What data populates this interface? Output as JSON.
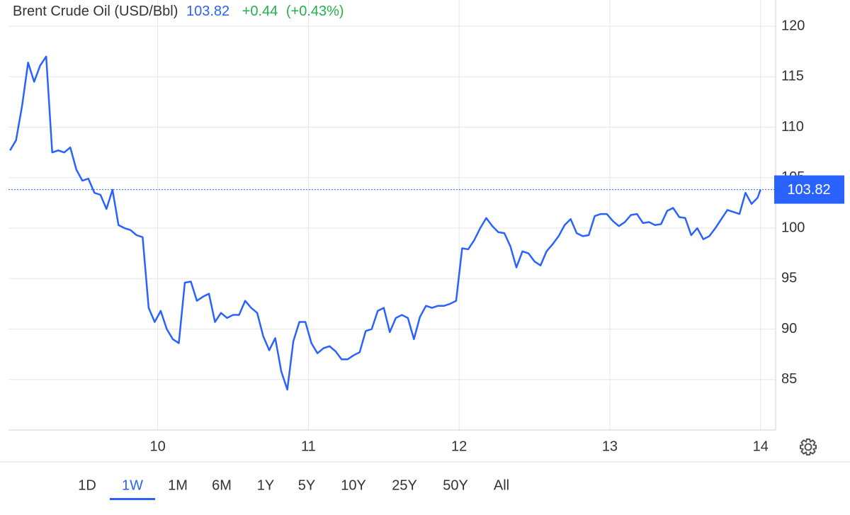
{
  "chart_data": {
    "type": "line",
    "title": "Brent Crude Oil (USD/Bbl)",
    "price": 103.82,
    "change": "+0.44",
    "change_pct": "(+0.43%)",
    "color": "#2962ff",
    "x": [
      9.02,
      9.06,
      9.1,
      9.14,
      9.18,
      9.22,
      9.26,
      9.3,
      9.34,
      9.38,
      9.42,
      9.46,
      9.5,
      9.54,
      9.58,
      9.62,
      9.66,
      9.7,
      9.74,
      9.78,
      9.82,
      9.86,
      9.9,
      9.94,
      9.98,
      10.02,
      10.06,
      10.1,
      10.14,
      10.18,
      10.22,
      10.26,
      10.3,
      10.34,
      10.38,
      10.42,
      10.46,
      10.5,
      10.54,
      10.58,
      10.62,
      10.66,
      10.7,
      10.74,
      10.78,
      10.82,
      10.86,
      10.9,
      10.94,
      10.98,
      11.02,
      11.06,
      11.1,
      11.14,
      11.18,
      11.22,
      11.26,
      11.3,
      11.34,
      11.38,
      11.42,
      11.46,
      11.5,
      11.54,
      11.58,
      11.62,
      11.66,
      11.7,
      11.74,
      11.78,
      11.82,
      11.86,
      11.9,
      11.94,
      11.98,
      12.02,
      12.06,
      12.1,
      12.14,
      12.18,
      12.22,
      12.26,
      12.3,
      12.34,
      12.38,
      12.42,
      12.46,
      12.5,
      12.54,
      12.58,
      12.62,
      12.66,
      12.7,
      12.74,
      12.78,
      12.82,
      12.86,
      12.9,
      12.94,
      12.98,
      13.02,
      13.06,
      13.1,
      13.14,
      13.18,
      13.22,
      13.26,
      13.3,
      13.34,
      13.38,
      13.42,
      13.46,
      13.5,
      13.54,
      13.58,
      13.62,
      13.66,
      13.7,
      13.74,
      13.78,
      13.82,
      13.86,
      13.9,
      13.94,
      13.98,
      14
    ],
    "values": [
      107.7,
      108.7,
      112.1,
      116.4,
      114.5,
      116.1,
      117.0,
      107.5,
      107.7,
      107.5,
      108.0,
      105.8,
      104.7,
      104.9,
      103.5,
      103.3,
      101.9,
      103.8,
      100.3,
      100.0,
      99.8,
      99.3,
      99.1,
      92.1,
      90.7,
      91.8,
      90.0,
      89.0,
      88.6,
      94.6,
      94.7,
      92.8,
      93.2,
      93.5,
      90.7,
      91.6,
      91.1,
      91.4,
      91.4,
      92.8,
      92.1,
      91.6,
      89.3,
      87.9,
      89.1,
      85.8,
      84.0,
      88.8,
      90.7,
      90.7,
      88.6,
      87.6,
      88.1,
      88.3,
      87.8,
      87.0,
      87.0,
      87.4,
      87.7,
      89.8,
      90.0,
      91.8,
      92.1,
      89.7,
      91.1,
      91.4,
      91.1,
      89.0,
      91.2,
      92.3,
      92.1,
      92.3,
      92.3,
      92.5,
      92.8,
      98.0,
      97.9,
      98.8,
      100.0,
      101.0,
      100.2,
      99.6,
      99.5,
      98.2,
      96.1,
      97.7,
      97.5,
      96.7,
      96.3,
      97.7,
      98.4,
      99.2,
      100.3,
      100.9,
      99.5,
      99.2,
      99.3,
      101.2,
      101.4,
      101.4,
      100.7,
      100.2,
      100.6,
      101.3,
      101.4,
      100.5,
      100.6,
      100.3,
      100.4,
      101.7,
      102.0,
      101.1,
      101.0,
      99.3,
      100.0,
      98.9,
      99.2,
      100.0,
      100.9,
      101.8,
      101.6,
      101.4,
      103.5,
      102.4,
      103.0,
      103.82
    ],
    "xlim": [
      9.01,
      14.1
    ],
    "ylim": [
      80,
      122.6
    ],
    "xticks": [
      10,
      11,
      12,
      13,
      14
    ],
    "yticks": [
      85,
      90,
      95,
      100,
      105,
      110,
      115,
      120
    ],
    "grid": true,
    "ranges": [
      {
        "label": "1D",
        "selected": false
      },
      {
        "label": "1W",
        "selected": true
      },
      {
        "label": "1M",
        "selected": false
      },
      {
        "label": "6M",
        "selected": false
      },
      {
        "label": "1Y",
        "selected": false
      },
      {
        "label": "5Y",
        "selected": false
      },
      {
        "label": "10Y",
        "selected": false
      },
      {
        "label": "25Y",
        "selected": false
      },
      {
        "label": "50Y",
        "selected": false
      },
      {
        "label": "All",
        "selected": false
      }
    ]
  }
}
